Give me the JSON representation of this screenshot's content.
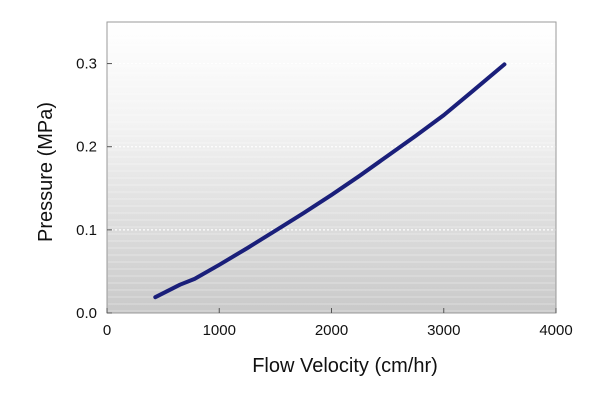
{
  "chart_data": {
    "type": "line",
    "title": "",
    "xlabel": "Flow Velocity (cm/hr)",
    "ylabel": "Pressure (MPa)",
    "xlim": [
      0,
      4000
    ],
    "ylim": [
      0,
      0.35
    ],
    "xticks": [
      0,
      1000,
      2000,
      3000,
      4000
    ],
    "xtick_labels": [
      "0",
      "1000",
      "2000",
      "3000",
      "4000"
    ],
    "yticks": [
      0.0,
      0.1,
      0.2,
      0.3
    ],
    "ytick_labels": [
      "0.0",
      "0.1",
      "0.2",
      "0.3"
    ],
    "grid": "horizontal",
    "legend": "none",
    "series": [
      {
        "color": "#1a1f7a",
        "x": [
          430,
          650,
          780,
          1000,
          1250,
          1500,
          1750,
          2000,
          2250,
          2500,
          2750,
          3000,
          3250,
          3540
        ],
        "y": [
          0.019,
          0.034,
          0.041,
          0.058,
          0.078,
          0.099,
          0.12,
          0.142,
          0.165,
          0.189,
          0.213,
          0.238,
          0.266,
          0.299
        ]
      }
    ]
  }
}
